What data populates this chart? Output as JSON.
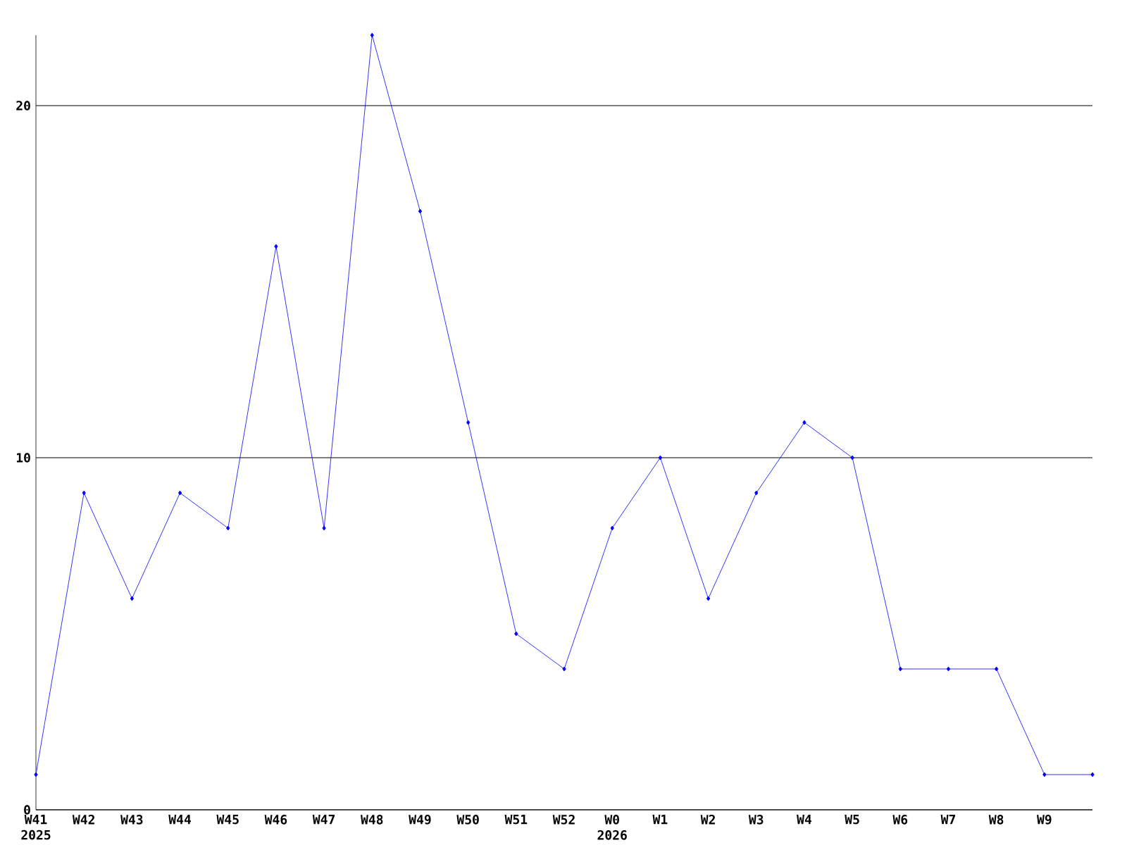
{
  "chart_data": {
    "type": "line",
    "categories": [
      "W41 2025",
      "W42",
      "W43",
      "W44",
      "W45",
      "W46",
      "W47",
      "W48",
      "W49",
      "W50",
      "W51",
      "W52",
      "W0 2026",
      "W1",
      "W2",
      "W3",
      "W4",
      "W5",
      "W6",
      "W7",
      "W8",
      "W9",
      null
    ],
    "values": [
      1,
      9,
      6,
      9,
      8,
      16,
      8,
      22,
      17,
      11,
      5,
      4,
      8,
      10,
      6,
      9,
      11,
      10,
      4,
      4,
      4,
      1,
      1
    ],
    "color": "#0000ff",
    "ylim": [
      0,
      22
    ],
    "yticks": [
      0,
      10,
      20
    ],
    "grid": "y",
    "marker": "diamond",
    "line_style": "solid"
  }
}
